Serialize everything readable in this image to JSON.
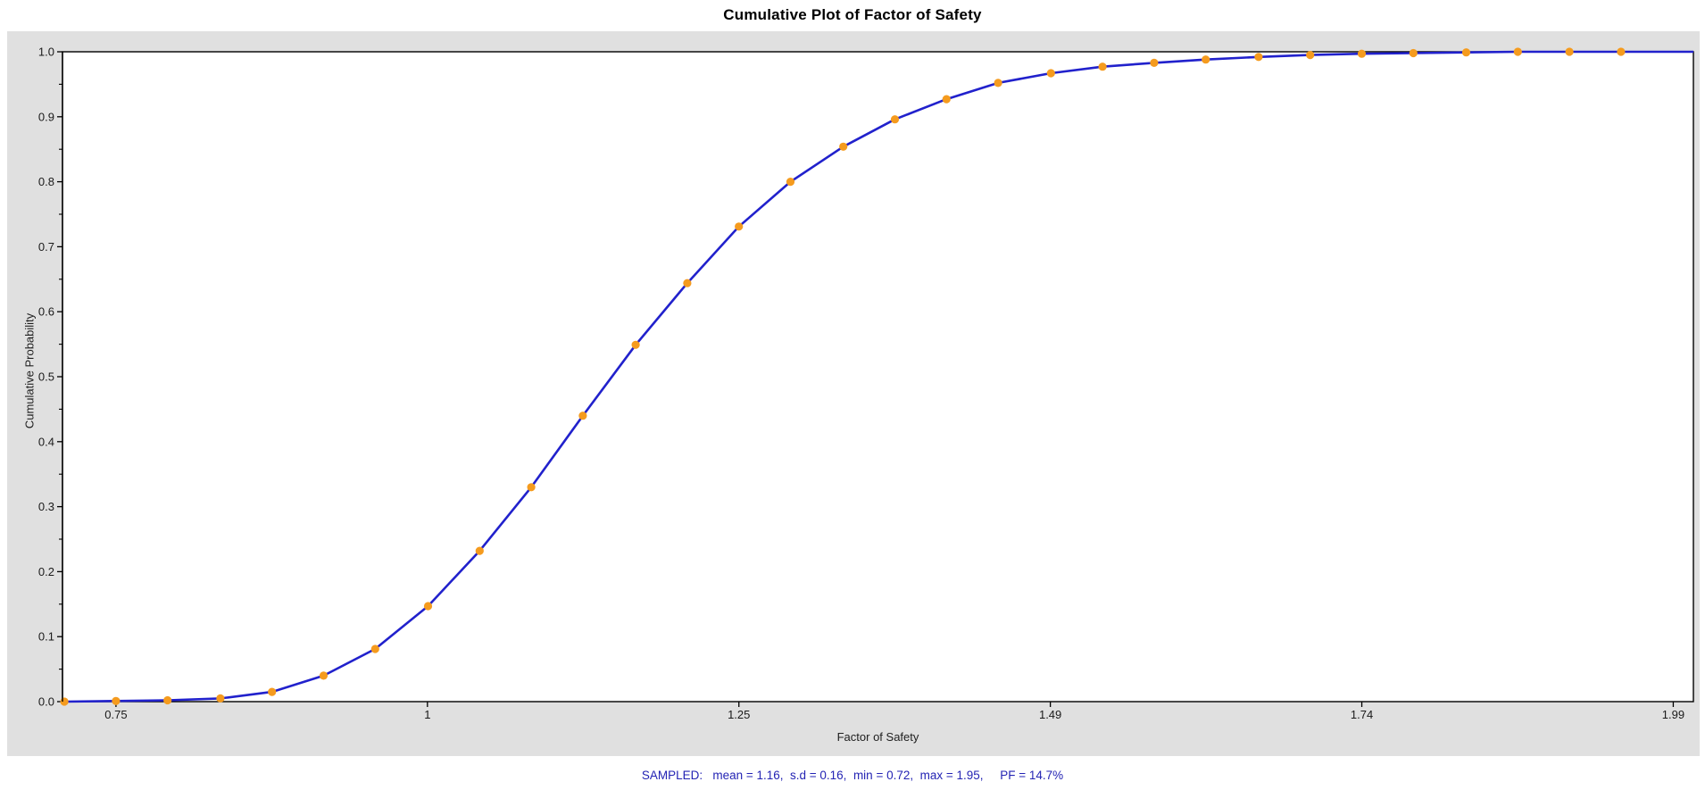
{
  "page": {
    "title": "Cumulative Plot of Factor of Safety",
    "status_line": "SAMPLED:   mean = 1.16,  s.d = 0.16,  min = 0.72,  max = 1.95,     PF = 14.7%"
  },
  "colors": {
    "panel_bg": "#e0e0e0",
    "plot_bg": "#ffffff",
    "axis": "#000000",
    "line": "#2121cc",
    "marker": "#f59b1e",
    "tick_label": "#1a1a1a",
    "status_text": "#2424b4"
  },
  "chart_data": {
    "type": "line",
    "title": "Cumulative Plot of Factor of Safety",
    "xlabel": "Factor of Safety",
    "ylabel": "Cumulative Probability",
    "xlim": [
      0.7075,
      2.0035
    ],
    "ylim": [
      0.0,
      1.0
    ],
    "grid": false,
    "legend_position": "none",
    "marker": "dot",
    "extend_right_at_y": 1.0,
    "points": [
      [
        0.709,
        0.0
      ],
      [
        0.75,
        0.001
      ],
      [
        0.791,
        0.002
      ],
      [
        0.833,
        0.005
      ],
      [
        0.874,
        0.015
      ],
      [
        0.915,
        0.04
      ],
      [
        0.956,
        0.081
      ],
      [
        0.998,
        0.147
      ],
      [
        1.039,
        0.232
      ],
      [
        1.08,
        0.33
      ],
      [
        1.121,
        0.44
      ],
      [
        1.163,
        0.549
      ],
      [
        1.204,
        0.644
      ],
      [
        1.245,
        0.731
      ],
      [
        1.286,
        0.8
      ],
      [
        1.328,
        0.854
      ],
      [
        1.369,
        0.896
      ],
      [
        1.41,
        0.927
      ],
      [
        1.451,
        0.952
      ],
      [
        1.493,
        0.967
      ],
      [
        1.534,
        0.977
      ],
      [
        1.575,
        0.983
      ],
      [
        1.616,
        0.988
      ],
      [
        1.658,
        0.992
      ],
      [
        1.699,
        0.995
      ],
      [
        1.74,
        0.997
      ],
      [
        1.781,
        0.998
      ],
      [
        1.823,
        0.999
      ],
      [
        1.864,
        1.0
      ],
      [
        1.905,
        1.0
      ],
      [
        1.946,
        1.0
      ]
    ],
    "xticks": {
      "values": [
        0.75,
        0.9975,
        1.245,
        1.4925,
        1.74,
        1.9875
      ],
      "labels": [
        "0.75",
        "1",
        "1.25",
        "1.49",
        "1.74",
        "1.99"
      ]
    },
    "yticks": {
      "values": [
        0.0,
        0.1,
        0.2,
        0.3,
        0.4,
        0.5,
        0.6,
        0.7,
        0.8,
        0.9,
        1.0
      ],
      "labels": [
        "0.0",
        "0.1",
        "0.2",
        "0.3",
        "0.4",
        "0.5",
        "0.6",
        "0.7",
        "0.8",
        "0.9",
        "1.0"
      ],
      "minor_values": [
        0.05,
        0.15,
        0.25,
        0.35,
        0.45,
        0.55,
        0.65,
        0.75,
        0.85,
        0.95
      ]
    },
    "stats": {
      "source": "SAMPLED",
      "mean": 1.16,
      "sd": 0.16,
      "min": 0.72,
      "max": 1.95,
      "pf_percent": 14.7
    }
  }
}
